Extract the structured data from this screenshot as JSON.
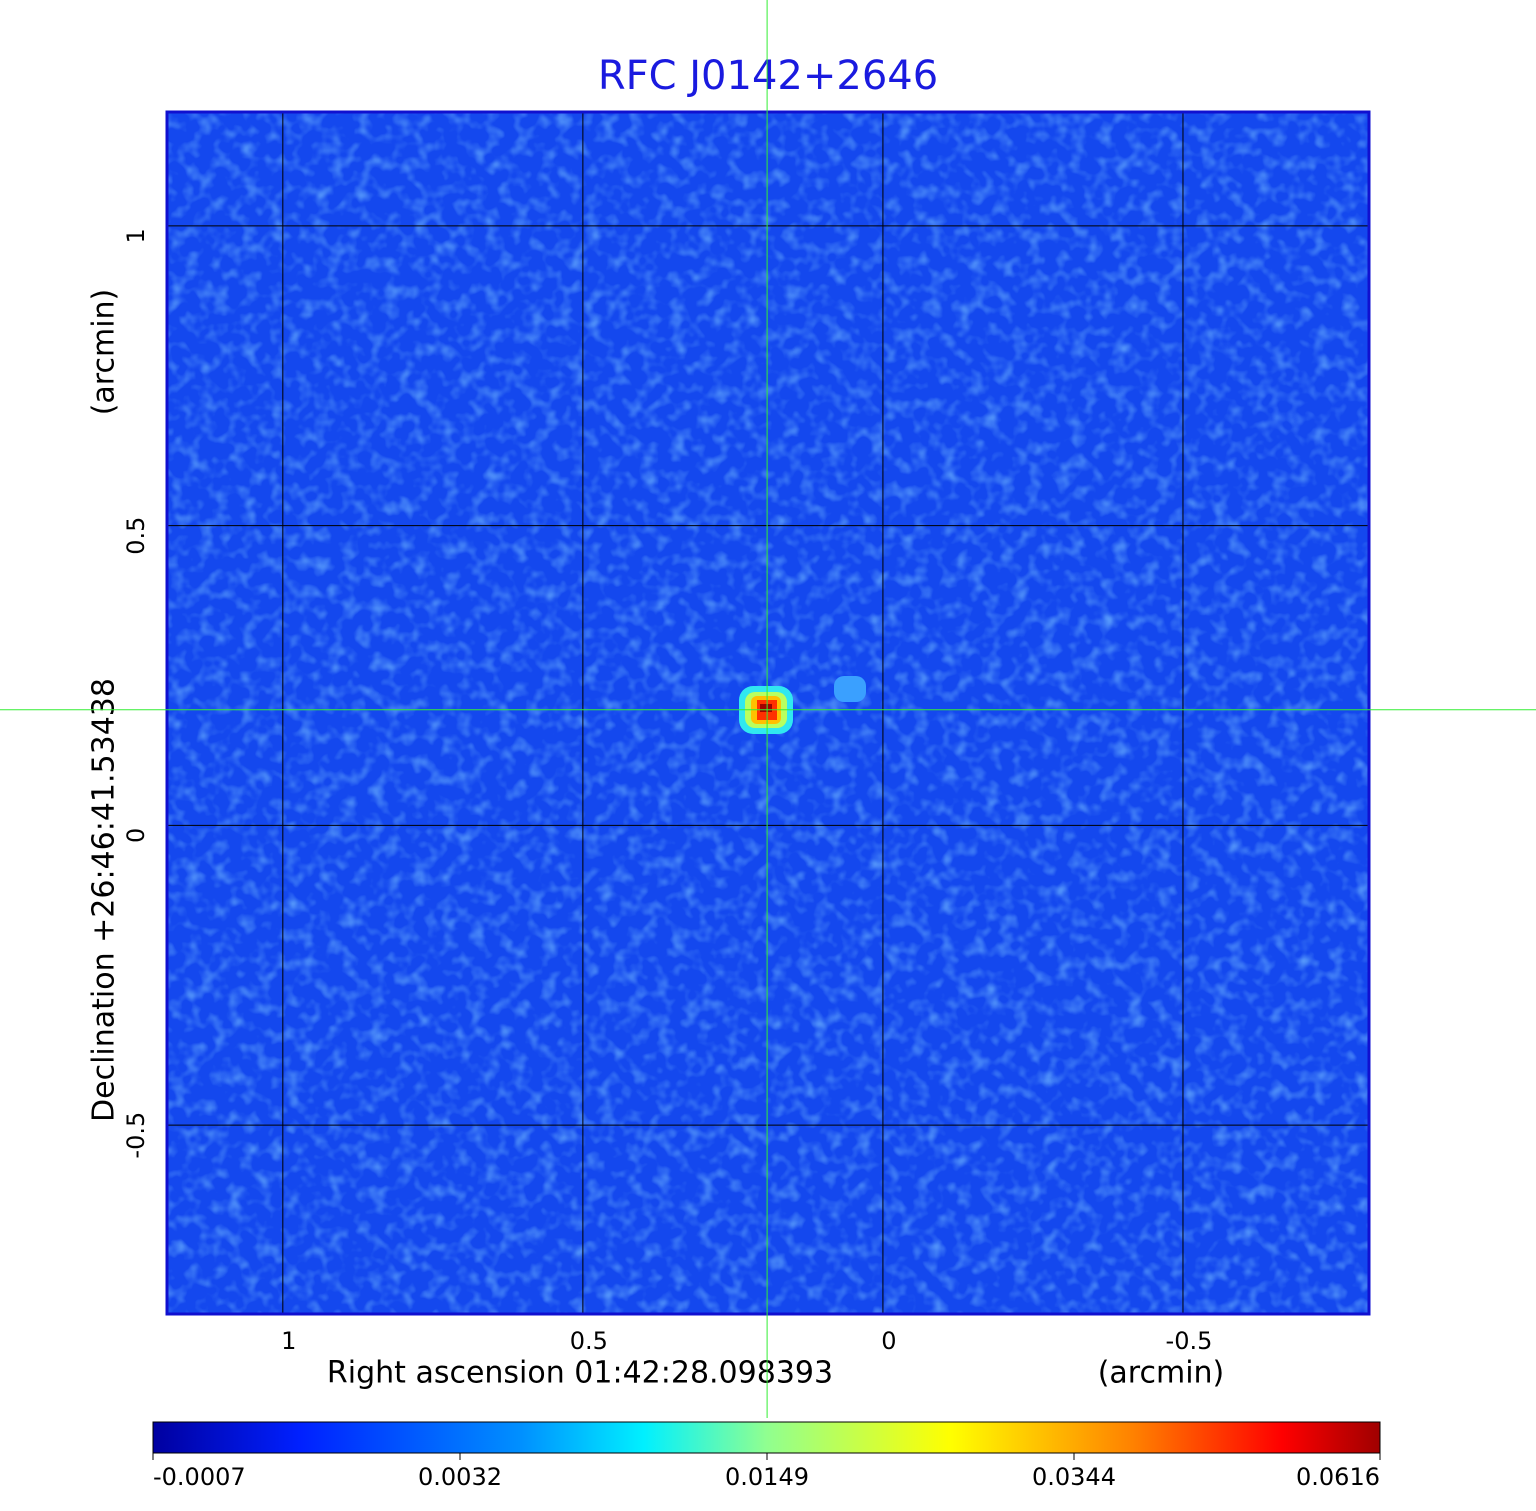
{
  "chart_data": {
    "type": "image",
    "title": "RFC J0142+2646",
    "xlabel": "Right ascension  01:42:28.098393",
    "xunit": "(arcmin)",
    "ylabel": "Declination  +26:46:41.53438",
    "yunit": "(arcmin)",
    "xlim": [
      1.193,
      -0.81
    ],
    "ylim": [
      -0.815,
      1.19
    ],
    "xticks": [
      1.0,
      0.5,
      0.0,
      -0.5
    ],
    "yticks": [
      1.0,
      0.5,
      0.0,
      -0.5
    ],
    "grid": true,
    "center": {
      "x": 0.193,
      "y": 0.193
    },
    "colorbar": {
      "lim": [
        -0.0007,
        0.0616
      ],
      "scale": "sqrt",
      "ticks": [
        -0.0007,
        0.0032,
        0.0149,
        0.0344,
        0.0616
      ]
    }
  }
}
